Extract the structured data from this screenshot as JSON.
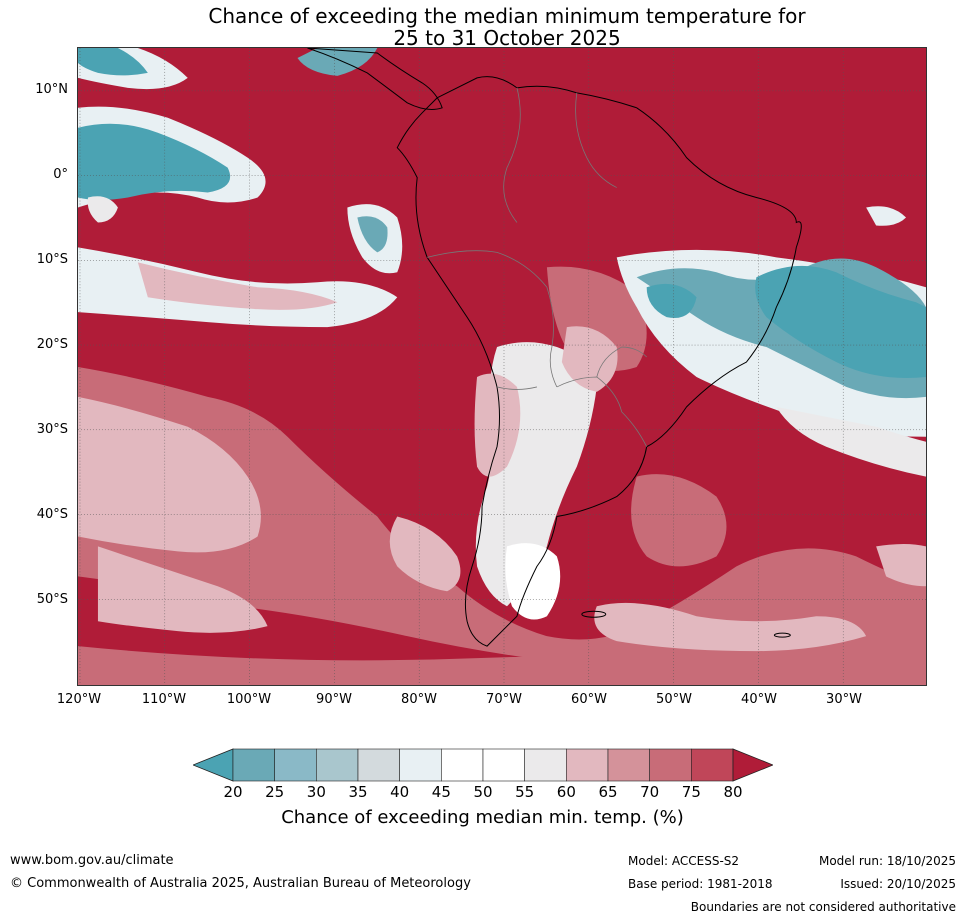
{
  "title_line1": "Chance of exceeding the median minimum temperature for",
  "title_line2": "25 to 31 October 2025",
  "lat_labels": [
    "10°N",
    "0°",
    "10°S",
    "20°S",
    "30°S",
    "40°S",
    "50°S"
  ],
  "lon_labels": [
    "120°W",
    "110°W",
    "100°W",
    "90°W",
    "80°W",
    "70°W",
    "60°W",
    "50°W",
    "40°W",
    "30°W"
  ],
  "colorbar": {
    "ticks": [
      "20",
      "25",
      "30",
      "35",
      "40",
      "45",
      "50",
      "55",
      "60",
      "65",
      "70",
      "75",
      "80"
    ],
    "colors": [
      "#4ba3b3",
      "#6aa9b6",
      "#8ab9c7",
      "#a9c6cd",
      "#d3dadd",
      "#e8f0f3",
      "#ffffff",
      "#ffffff",
      "#ebeaeb",
      "#e2b8bf",
      "#d4929a",
      "#c86c78",
      "#c04659",
      "#b01c38"
    ],
    "label": "Chance of exceeding median min. temp. (%)"
  },
  "colors": {
    "high": "#b01c38",
    "mid_high": "#c86c78",
    "light_pink": "#e2b8bf",
    "neutral": "#ebeaeb",
    "low": "#4ba3b3"
  },
  "footer": {
    "url": "www.bom.gov.au/climate",
    "copyright": "© Commonwealth of Australia 2025, Australian Bureau of Meteorology",
    "model": "Model: ACCESS-S2",
    "base_period": "Base period: 1981-2018",
    "model_run": "Model run: 18/10/2025",
    "issued": "Issued: 20/10/2025",
    "disclaimer": "Boundaries are not considered authoritative"
  }
}
